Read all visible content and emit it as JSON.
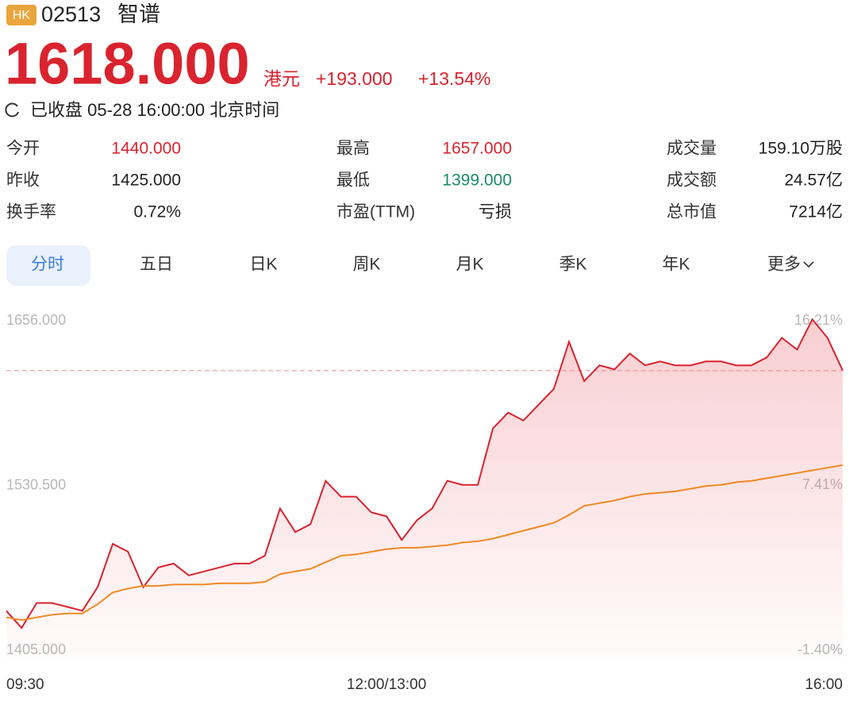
{
  "header": {
    "market": "HK",
    "code": "02513",
    "name": "智谱",
    "price": "1618.000",
    "currency": "港元",
    "change": "+193.000",
    "change_pct": "+13.54%",
    "status": "已收盘 05-28 16:00:00 北京时间"
  },
  "stats": [
    [
      {
        "label": "今开",
        "value": "1440.000"
      },
      {
        "label": "最高",
        "value": "1657.000"
      },
      {
        "label": "成交量",
        "value": "159.10万股"
      }
    ],
    [
      {
        "label": "昨收",
        "value": "1425.000"
      },
      {
        "label": "最低",
        "value": "1399.000"
      },
      {
        "label": "成交额",
        "value": "24.57亿"
      }
    ],
    [
      {
        "label": "换手率",
        "value": "0.72%"
      },
      {
        "label": "市盈(TTM)",
        "value": "亏损"
      },
      {
        "label": "总市值",
        "value": "7214亿"
      }
    ]
  ],
  "tabs": [
    "分时",
    "五日",
    "日K",
    "周K",
    "月K",
    "季K",
    "年K",
    "更多"
  ],
  "chart_data": {
    "type": "line",
    "x": [
      0,
      6,
      12,
      18,
      24,
      30,
      36,
      42,
      48,
      54,
      60,
      66,
      72,
      78,
      84,
      90,
      96,
      102,
      108,
      114,
      120,
      126,
      132,
      138,
      144,
      150,
      156,
      162,
      168,
      174,
      180,
      186,
      192,
      198,
      204,
      210,
      216,
      222,
      228,
      234,
      240,
      246,
      252,
      258,
      264,
      270,
      276,
      282,
      288,
      294,
      300,
      306,
      312,
      318,
      324,
      330
    ],
    "xlim": [
      0,
      330
    ],
    "xticks": [
      {
        "value": 0,
        "label": "09:30"
      },
      {
        "value": 150,
        "label": "12:00/13:00"
      },
      {
        "value": 330,
        "label": "16:00"
      }
    ],
    "ylim": [
      1405,
      1656
    ],
    "yticks": [
      {
        "value": 1656,
        "label": "1656.000"
      },
      {
        "value": 1530.5,
        "label": "1530.500"
      },
      {
        "value": 1405,
        "label": "1405.000"
      }
    ],
    "y2lim": [
      -1.4,
      16.21
    ],
    "y2ticks": [
      {
        "value": 16.21,
        "label": "16.21%"
      },
      {
        "value": 7.41,
        "label": "7.41%"
      },
      {
        "value": -1.4,
        "label": "-1.40%"
      }
    ],
    "series": [
      {
        "color": "#d9232e",
        "values": [
          1435,
          1422,
          1441,
          1441,
          1438,
          1435,
          1453,
          1486,
          1480,
          1453,
          1468,
          1471,
          1462,
          1465,
          1468,
          1471,
          1471,
          1477,
          1513,
          1495,
          1501,
          1534,
          1522,
          1522,
          1510,
          1507,
          1489,
          1504,
          1513,
          1534,
          1531,
          1531,
          1574,
          1586,
          1580,
          1592,
          1604,
          1640,
          1610,
          1622,
          1619,
          1631,
          1622,
          1625,
          1622,
          1622,
          1625,
          1625,
          1622,
          1622,
          1628,
          1643,
          1634,
          1657,
          1643,
          1618
        ]
      },
      {
        "color": "#f08a24",
        "values": [
          1430,
          1428,
          1430,
          1432,
          1433,
          1433,
          1440,
          1449,
          1452,
          1454,
          1454,
          1455,
          1455,
          1455,
          1456,
          1456,
          1456,
          1457,
          1463,
          1465,
          1467,
          1472,
          1477,
          1478,
          1480,
          1482,
          1483,
          1483,
          1484,
          1485,
          1487,
          1488,
          1490,
          1493,
          1496,
          1499,
          1502,
          1508,
          1515,
          1517,
          1519,
          1522,
          1524,
          1525,
          1526,
          1528,
          1530,
          1531,
          1533,
          1534,
          1536,
          1538,
          1540,
          1542,
          1544,
          1546
        ]
      }
    ]
  }
}
